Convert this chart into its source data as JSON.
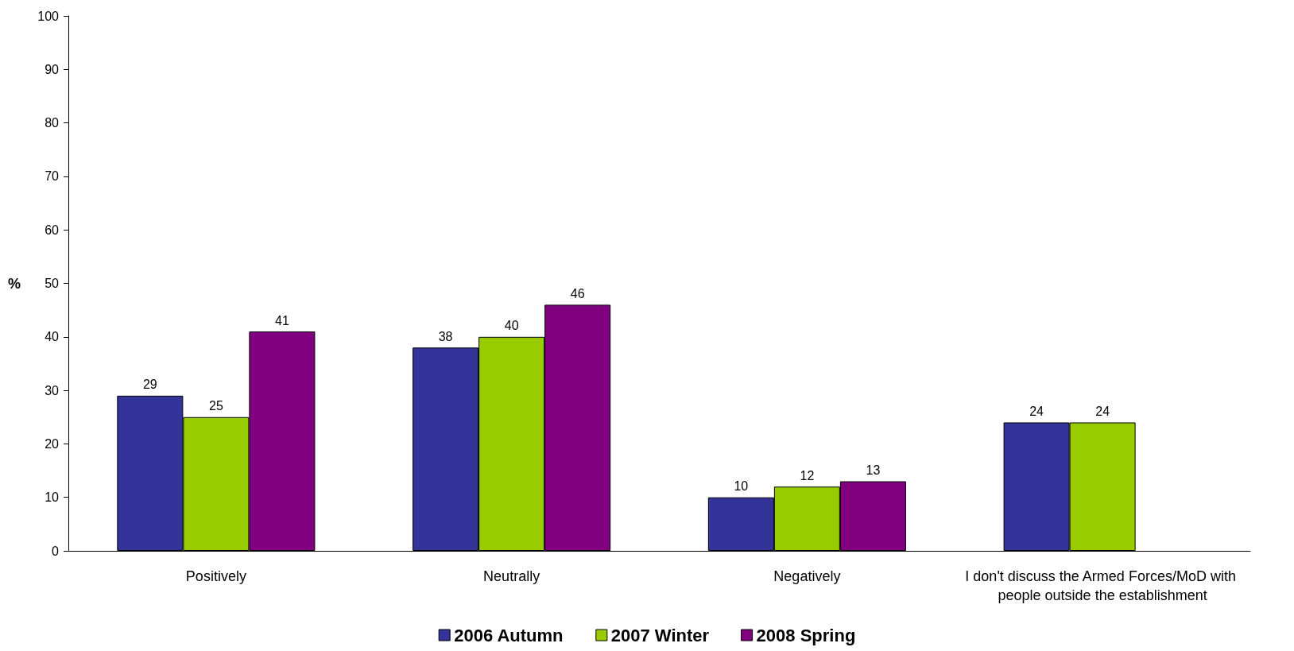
{
  "chart_data": {
    "type": "bar",
    "ylabel": "%",
    "categories": [
      "Positively",
      "Neutrally",
      "Negatively",
      "I don't discuss the Armed Forces/MoD with people outside the establishment"
    ],
    "series": [
      {
        "name": "2006 Autumn",
        "color": "#333399",
        "values": [
          29,
          38,
          10,
          24
        ]
      },
      {
        "name": "2007 Winter",
        "color": "#99cc00",
        "values": [
          25,
          40,
          12,
          24
        ]
      },
      {
        "name": "2008 Spring",
        "color": "#800080",
        "values": [
          41,
          46,
          13,
          null
        ]
      }
    ],
    "ylim": [
      0,
      100
    ],
    "yticks": [
      0,
      10,
      20,
      30,
      40,
      50,
      60,
      70,
      80,
      90,
      100
    ],
    "grid": false,
    "legend": "bottom",
    "data_labels": true
  }
}
